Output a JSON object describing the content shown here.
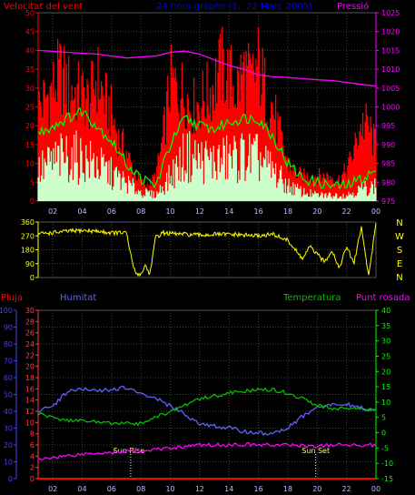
{
  "colors": {
    "background": "#000000",
    "wind_axis": "#ff0000",
    "pressure": "#ff00ff",
    "title": "#0000ff",
    "grid": "#404040",
    "gust": "#ff0000",
    "average": "#00ff00",
    "speed": "#ccffcc",
    "direction": "#ffff00",
    "compass": "#ffff00",
    "rain": "#ff0000",
    "humidity": "#6060ff",
    "temperature": "#00c000",
    "dewpoint": "#ff00ff",
    "rain_axis": "#ff4040",
    "hum_axis": "#4040ff",
    "temp_axis": "#00ff00",
    "time_axis": "#b0c0ff"
  },
  "hour_labels": [
    "02",
    "04",
    "06",
    "08",
    "10",
    "12",
    "14",
    "16",
    "18",
    "20",
    "22",
    "00"
  ],
  "compass": [
    "N",
    "W",
    "S",
    "E",
    "N"
  ],
  "chart_data": [
    {
      "type": "line",
      "title": "24 hora graphs (1.. 22 Març 2005)",
      "ylabel": "Velocitat del vent",
      "y2label": "Pressió",
      "ylim": [
        0,
        50
      ],
      "y2lim": [
        975,
        1025
      ],
      "y_ticks": [
        "0",
        "5",
        "10",
        "15",
        "20",
        "25",
        "30",
        "35",
        "40",
        "45",
        "50"
      ],
      "y2_ticks": [
        "975",
        "980",
        "985",
        "990",
        "995",
        "1000",
        "1005",
        "1010",
        "1015",
        "1020",
        "1025"
      ],
      "xlim": [
        1,
        24
      ],
      "grid": true,
      "series": [
        {
          "name": "gust",
          "x": [
            1,
            1.5,
            2,
            2.5,
            3,
            3.5,
            4,
            4.5,
            5,
            5.5,
            6,
            6.5,
            7,
            7.5,
            8,
            8.5,
            9,
            9.5,
            10,
            10.5,
            11,
            11.5,
            12,
            12.5,
            13,
            13.5,
            14,
            14.5,
            15,
            15.5,
            16,
            16.5,
            17,
            17.5,
            18,
            18.5,
            19,
            19.5,
            20,
            20.5,
            21,
            21.5,
            22,
            22.5,
            23,
            23.5,
            24
          ],
          "values": [
            30,
            33,
            36,
            41,
            37,
            35,
            34,
            32,
            40,
            33,
            28,
            20,
            16,
            10,
            6,
            5,
            8,
            20,
            38,
            36,
            35,
            30,
            32,
            34,
            38,
            43,
            40,
            36,
            42,
            38,
            44,
            35,
            30,
            20,
            12,
            9,
            8,
            8,
            8,
            8,
            8,
            7,
            10,
            16,
            25,
            24,
            17
          ]
        },
        {
          "name": "average",
          "x": [
            1,
            2,
            3,
            4,
            5,
            6,
            7,
            8,
            9,
            10,
            11,
            12,
            13,
            14,
            15,
            16,
            17,
            18,
            19,
            20,
            21,
            22,
            23,
            24
          ],
          "values": [
            18,
            20,
            22,
            24,
            20,
            16,
            10,
            6,
            4,
            15,
            22,
            20,
            19,
            21,
            22,
            22,
            17,
            10,
            6,
            5,
            4,
            4,
            6,
            8
          ]
        },
        {
          "name": "speed",
          "x": [
            1,
            2,
            3,
            4,
            5,
            6,
            7,
            8,
            9,
            10,
            11,
            12,
            13,
            14,
            15,
            16,
            17,
            18,
            19,
            20,
            21,
            22,
            23,
            24
          ],
          "values": [
            10,
            13,
            15,
            14,
            12,
            9,
            6,
            3,
            2,
            8,
            15,
            14,
            13,
            14,
            15,
            14,
            10,
            5,
            3,
            2,
            2,
            2,
            4,
            5
          ]
        },
        {
          "name": "pressure",
          "x": [
            1,
            3,
            5,
            7,
            9,
            10,
            11,
            12,
            13,
            14,
            15,
            16,
            17,
            18,
            19,
            20,
            21,
            22,
            23,
            24
          ],
          "values": [
            1015,
            1014.5,
            1014,
            1013,
            1013.5,
            1014.5,
            1014.8,
            1014,
            1012.5,
            1011,
            1010,
            1008.5,
            1008,
            1007.8,
            1007.5,
            1007.2,
            1007,
            1006.5,
            1006,
            1005.5
          ]
        }
      ]
    },
    {
      "type": "line",
      "ylabel": "",
      "ylim": [
        0,
        360
      ],
      "y_ticks": [
        "0",
        "90",
        "180",
        "270",
        "360"
      ],
      "xlim": [
        1,
        24
      ],
      "grid": true,
      "series": [
        {
          "name": "direction",
          "x": [
            1,
            2,
            3,
            4,
            5,
            6,
            7,
            7.3,
            7.6,
            8,
            8.3,
            8.6,
            9,
            9.5,
            10,
            11,
            12,
            13,
            14,
            15,
            16,
            17,
            17.5,
            18,
            18.5,
            19,
            19.5,
            20,
            20.5,
            21,
            21.5,
            22,
            22.5,
            23,
            23.5,
            24
          ],
          "values": [
            285,
            290,
            300,
            305,
            300,
            290,
            290,
            150,
            30,
            20,
            80,
            20,
            260,
            290,
            285,
            280,
            275,
            280,
            280,
            275,
            270,
            280,
            260,
            240,
            180,
            120,
            200,
            150,
            100,
            180,
            60,
            200,
            90,
            330,
            10,
            350
          ]
        }
      ]
    },
    {
      "type": "line",
      "y_ticks_rain": [
        "0",
        "2",
        "4",
        "6",
        "8",
        "10",
        "12",
        "14",
        "16",
        "18",
        "20",
        "22",
        "24",
        "26",
        "28",
        "30"
      ],
      "y_ticks_hum": [
        "0",
        "10",
        "20",
        "30",
        "40",
        "50",
        "60",
        "70",
        "80",
        "90",
        "100"
      ],
      "y_ticks_temp": [
        "-15",
        "-10",
        "-5",
        "0",
        "5",
        "10",
        "15",
        "20",
        "25",
        "30",
        "35",
        "40"
      ],
      "ylim_hum": [
        0,
        100
      ],
      "ylim_temp": [
        -15,
        40
      ],
      "xlim": [
        1,
        24
      ],
      "grid": true,
      "series": [
        {
          "name": "Pluja",
          "x": [
            1,
            24
          ],
          "values": [
            0,
            0
          ]
        },
        {
          "name": "Humitat",
          "x": [
            1,
            2,
            3,
            4,
            5,
            6,
            7,
            8,
            9,
            10,
            11,
            12,
            13,
            14,
            15,
            16,
            17,
            18,
            19,
            20,
            21,
            22,
            23,
            24
          ],
          "values": [
            40,
            43,
            52,
            53,
            52,
            53,
            54,
            50,
            48,
            43,
            38,
            33,
            31,
            30,
            28,
            27,
            27,
            30,
            37,
            42,
            44,
            44,
            42,
            40
          ]
        },
        {
          "name": "Temperatura",
          "x": [
            1,
            2,
            3,
            4,
            5,
            6,
            7,
            8,
            9,
            10,
            11,
            12,
            13,
            14,
            15,
            16,
            17,
            18,
            19,
            20,
            21,
            22,
            23,
            24
          ],
          "values": [
            6,
            5,
            4,
            4,
            3.5,
            3,
            3,
            3,
            5,
            7,
            9,
            11,
            12,
            13,
            13.5,
            14,
            14,
            13,
            11,
            9,
            8,
            8,
            8,
            7.5
          ]
        },
        {
          "name": "Punt rosada",
          "x": [
            1,
            2,
            3,
            4,
            5,
            6,
            7,
            8,
            9,
            10,
            11,
            12,
            13,
            14,
            15,
            16,
            17,
            18,
            19,
            20,
            21,
            22,
            23,
            24
          ],
          "values": [
            -9,
            -8,
            -7.5,
            -7,
            -6.5,
            -6.5,
            -6,
            -6,
            -5.5,
            -5,
            -4.5,
            -4,
            -4,
            -4,
            -3.8,
            -4,
            -4,
            -4,
            -4.2,
            -4.5,
            -4,
            -4,
            -4,
            -4
          ]
        }
      ]
    }
  ],
  "labels": {
    "wind": "Velocitat del vent",
    "title": "24 hora graphs (1.. 22 Març 2005)",
    "pressure": "Pressió",
    "rain": "Pluja",
    "humidity": "Humitat",
    "temperature": "Temperatura",
    "dewpoint": "Punt rosada",
    "sunrise": "Sun Rise",
    "sunset": "Sun Set"
  },
  "sun": {
    "rise_hour": 7.3,
    "set_hour": 19.9
  }
}
